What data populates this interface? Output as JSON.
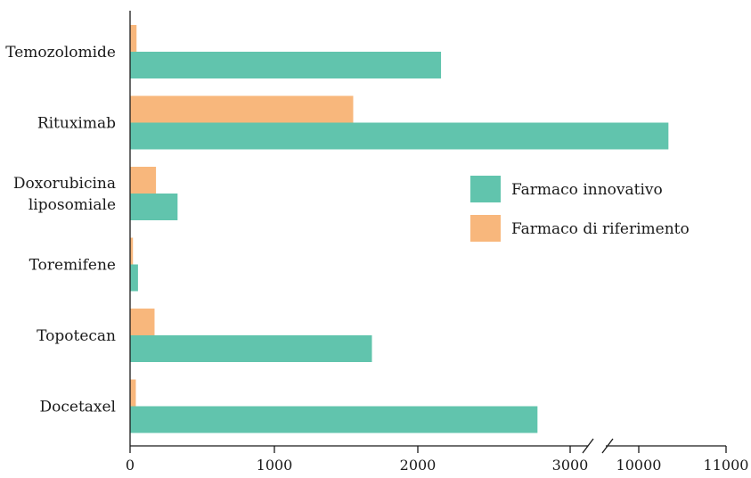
{
  "chart_data": {
    "type": "bar",
    "orientation": "horizontal",
    "categories": [
      "Temozolomide",
      "Rituximab",
      "Doxorubicina\nliposomiale",
      "Toremifene",
      "Topotecan",
      "Docetaxel"
    ],
    "series": [
      {
        "name": "Farmaco innovativo",
        "color": "#61c4ad",
        "values": [
          2160,
          10340,
          330,
          55,
          1680,
          2830
        ]
      },
      {
        "name": "Farmaco di riferimento",
        "color": "#f8b77c",
        "values": [
          45,
          1550,
          180,
          20,
          170,
          40
        ]
      }
    ],
    "x_axis": {
      "ticks": [
        0,
        1000,
        2000,
        3000,
        10000,
        11000
      ],
      "tick_labels": [
        "0",
        "1000",
        "2000",
        "3000",
        "10000",
        "11000"
      ],
      "broken_between": [
        3000,
        10000
      ]
    },
    "title": "",
    "xlabel": "",
    "ylabel": "",
    "grid": false,
    "legend_position": "right-center"
  }
}
